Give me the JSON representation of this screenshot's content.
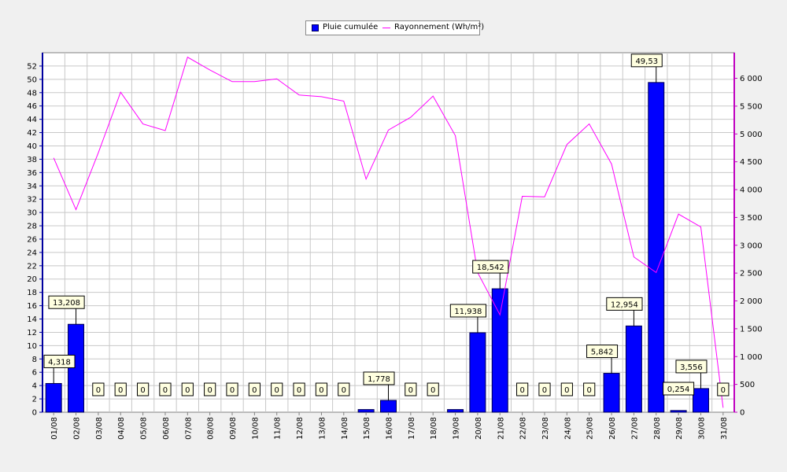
{
  "chart_data": {
    "type": "bar",
    "legend": {
      "bar_label": "Pluie cumulée",
      "line_label": "Rayonnement (Wh/m²)",
      "position": "top-center"
    },
    "categories": [
      "01/08",
      "02/08",
      "03/08",
      "04/08",
      "05/08",
      "06/08",
      "07/08",
      "08/08",
      "09/08",
      "10/08",
      "11/08",
      "12/08",
      "13/08",
      "14/08",
      "15/08",
      "16/08",
      "17/08",
      "18/08",
      "19/08",
      "20/08",
      "21/08",
      "22/08",
      "23/08",
      "24/08",
      "25/08",
      "26/08",
      "27/08",
      "28/08",
      "29/08",
      "30/08",
      "31/08"
    ],
    "series": [
      {
        "name": "Pluie cumulée",
        "type": "bar",
        "axis": "left",
        "color": "#0000ff",
        "values": [
          4.318,
          13.208,
          0,
          0,
          0,
          0,
          0,
          0,
          0,
          0,
          0,
          0,
          0,
          0,
          0.4,
          1.778,
          0,
          0,
          0.4,
          11.938,
          18.542,
          0,
          0,
          0,
          0,
          5.842,
          12.954,
          49.53,
          0.254,
          3.556,
          0
        ],
        "labels": [
          "4,318",
          "13,208",
          "0",
          "0",
          "0",
          "0",
          "0",
          "0",
          "0",
          "0",
          "0",
          "0",
          "0",
          "0",
          "",
          "1,778",
          "0",
          "0",
          "",
          "11,938",
          "18,542",
          "0",
          "0",
          "0",
          "0",
          "5,842",
          "12,954",
          "49,53",
          "0,254",
          "3,556",
          "0"
        ]
      },
      {
        "name": "Rayonnement (Wh/m²)",
        "type": "line",
        "axis": "right",
        "color": "#ff00ff",
        "values": [
          4570,
          3640,
          4660,
          5750,
          5180,
          5060,
          6380,
          6150,
          5940,
          5940,
          5990,
          5700,
          5670,
          5590,
          4190,
          5070,
          5300,
          5680,
          4970,
          2510,
          1750,
          3880,
          3870,
          4810,
          5180,
          4460,
          2790,
          2510,
          3560,
          3330,
          80
        ]
      }
    ],
    "y_left": {
      "min": 0,
      "max": 54,
      "ticks": [
        0,
        2,
        4,
        6,
        8,
        10,
        12,
        14,
        16,
        18,
        20,
        22,
        24,
        26,
        28,
        30,
        32,
        34,
        36,
        38,
        40,
        42,
        44,
        46,
        48,
        50,
        52
      ]
    },
    "y_right": {
      "min": 0,
      "max": 6460,
      "ticks": [
        0,
        500,
        1000,
        1500,
        2000,
        2500,
        3000,
        3500,
        4000,
        4500,
        5000,
        5500,
        6000
      ],
      "tick_labels": [
        "0",
        "500",
        "1 000",
        "1 500",
        "2 000",
        "2 500",
        "3 000",
        "3 500",
        "4 000",
        "4 500",
        "5 000",
        "5 500",
        "6 000"
      ]
    },
    "grid": true,
    "colors": {
      "background": "#f0f0f0",
      "plot": "#ffffff",
      "grid": "#c8c8c8",
      "left_axis": "#0000a0",
      "right_axis": "#c000c0",
      "label_bg": "#ffffe0"
    }
  }
}
